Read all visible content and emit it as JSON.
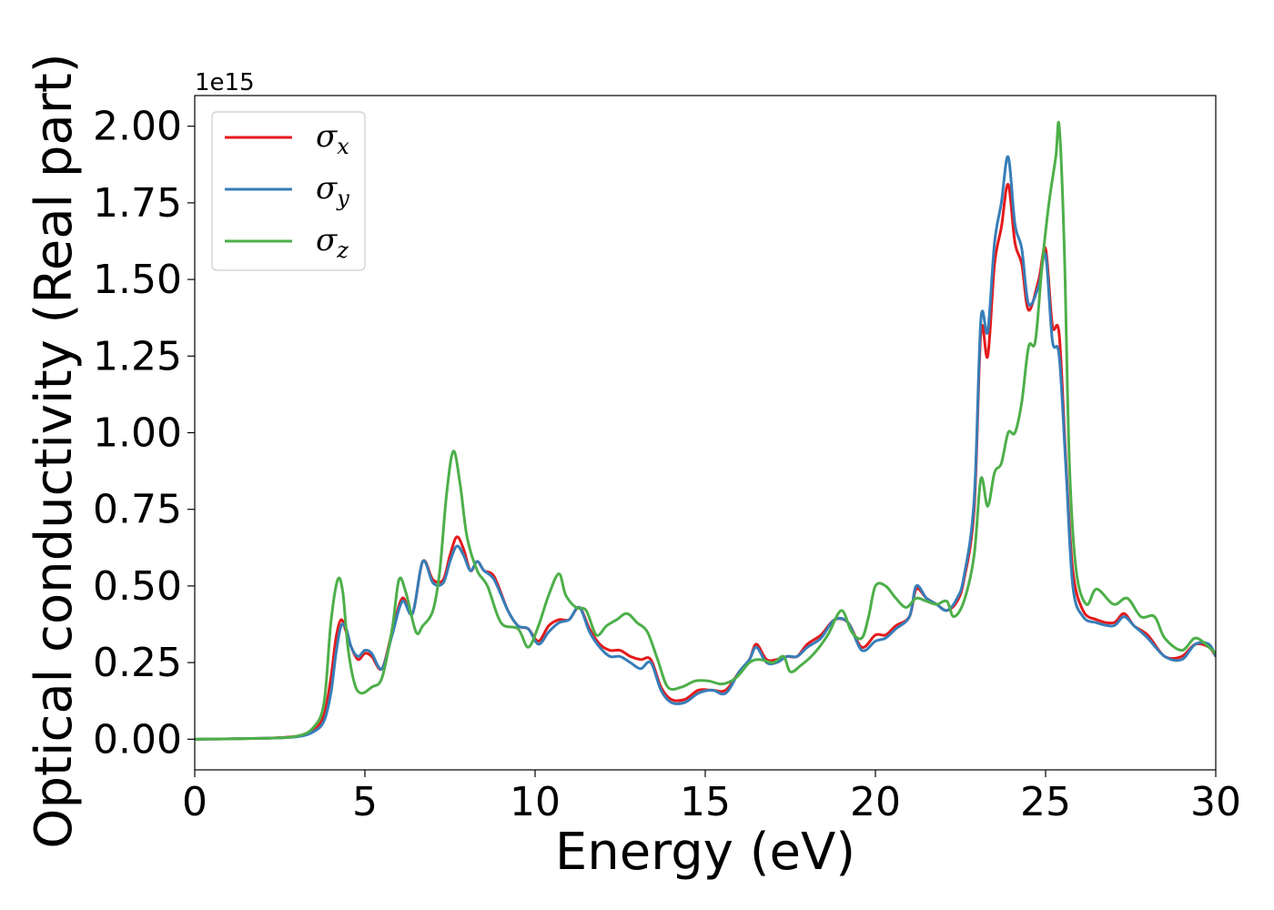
{
  "chart_data": {
    "type": "line",
    "xlabel": "Energy (eV)",
    "ylabel": "Optical conductivity (Real part)",
    "y_offset_label": "1e15",
    "xlim": [
      0,
      30
    ],
    "ylim": [
      -0.1,
      2.1
    ],
    "x_ticks": [
      0,
      5,
      10,
      15,
      20,
      25,
      30
    ],
    "x_tick_labels": [
      "0",
      "5",
      "10",
      "15",
      "20",
      "25",
      "30"
    ],
    "y_ticks": [
      0.0,
      0.25,
      0.5,
      0.75,
      1.0,
      1.25,
      1.5,
      1.75,
      2.0
    ],
    "y_tick_labels": [
      "0.00",
      "0.25",
      "0.50",
      "0.75",
      "1.00",
      "1.25",
      "1.50",
      "1.75",
      "2.00"
    ],
    "legend_position": "top-left",
    "grid": false,
    "series": [
      {
        "name": "σx",
        "symbol": "σ",
        "subscript": "x",
        "color": "#e41a1c",
        "points": [
          [
            0,
            0
          ],
          [
            2,
            0.003
          ],
          [
            3,
            0.01
          ],
          [
            3.5,
            0.03
          ],
          [
            3.8,
            0.08
          ],
          [
            4.0,
            0.2
          ],
          [
            4.15,
            0.33
          ],
          [
            4.3,
            0.39
          ],
          [
            4.45,
            0.35
          ],
          [
            4.6,
            0.3
          ],
          [
            4.8,
            0.26
          ],
          [
            5.0,
            0.28
          ],
          [
            5.2,
            0.27
          ],
          [
            5.5,
            0.23
          ],
          [
            5.8,
            0.35
          ],
          [
            6.1,
            0.46
          ],
          [
            6.4,
            0.41
          ],
          [
            6.7,
            0.58
          ],
          [
            7.0,
            0.52
          ],
          [
            7.3,
            0.52
          ],
          [
            7.5,
            0.6
          ],
          [
            7.7,
            0.66
          ],
          [
            7.9,
            0.62
          ],
          [
            8.1,
            0.55
          ],
          [
            8.3,
            0.58
          ],
          [
            8.5,
            0.55
          ],
          [
            8.8,
            0.53
          ],
          [
            9.2,
            0.42
          ],
          [
            9.5,
            0.37
          ],
          [
            9.8,
            0.36
          ],
          [
            10.1,
            0.32
          ],
          [
            10.4,
            0.37
          ],
          [
            10.7,
            0.39
          ],
          [
            11.0,
            0.39
          ],
          [
            11.3,
            0.43
          ],
          [
            11.6,
            0.36
          ],
          [
            11.9,
            0.31
          ],
          [
            12.2,
            0.29
          ],
          [
            12.5,
            0.29
          ],
          [
            12.8,
            0.27
          ],
          [
            13.1,
            0.26
          ],
          [
            13.4,
            0.26
          ],
          [
            13.7,
            0.17
          ],
          [
            14.0,
            0.13
          ],
          [
            14.4,
            0.13
          ],
          [
            14.8,
            0.16
          ],
          [
            15.2,
            0.16
          ],
          [
            15.6,
            0.16
          ],
          [
            16.0,
            0.22
          ],
          [
            16.3,
            0.26
          ],
          [
            16.5,
            0.31
          ],
          [
            16.8,
            0.26
          ],
          [
            17.1,
            0.26
          ],
          [
            17.4,
            0.27
          ],
          [
            17.7,
            0.27
          ],
          [
            18.0,
            0.31
          ],
          [
            18.4,
            0.34
          ],
          [
            18.8,
            0.39
          ],
          [
            19.2,
            0.38
          ],
          [
            19.6,
            0.3
          ],
          [
            20.0,
            0.34
          ],
          [
            20.3,
            0.34
          ],
          [
            20.6,
            0.37
          ],
          [
            21.0,
            0.4
          ],
          [
            21.2,
            0.49
          ],
          [
            21.5,
            0.46
          ],
          [
            21.8,
            0.44
          ],
          [
            22.1,
            0.42
          ],
          [
            22.4,
            0.45
          ],
          [
            22.6,
            0.52
          ],
          [
            22.9,
            0.75
          ],
          [
            23.1,
            1.33
          ],
          [
            23.3,
            1.25
          ],
          [
            23.5,
            1.55
          ],
          [
            23.7,
            1.67
          ],
          [
            23.9,
            1.81
          ],
          [
            24.1,
            1.62
          ],
          [
            24.3,
            1.55
          ],
          [
            24.5,
            1.4
          ],
          [
            24.8,
            1.5
          ],
          [
            25.0,
            1.6
          ],
          [
            25.2,
            1.35
          ],
          [
            25.4,
            1.32
          ],
          [
            25.6,
            0.9
          ],
          [
            25.8,
            0.55
          ],
          [
            26.1,
            0.42
          ],
          [
            26.5,
            0.39
          ],
          [
            27.0,
            0.38
          ],
          [
            27.3,
            0.41
          ],
          [
            27.6,
            0.37
          ],
          [
            28.0,
            0.34
          ],
          [
            28.5,
            0.27
          ],
          [
            29.0,
            0.27
          ],
          [
            29.4,
            0.31
          ],
          [
            29.8,
            0.3
          ],
          [
            30,
            0.27
          ]
        ]
      },
      {
        "name": "σy",
        "symbol": "σ",
        "subscript": "y",
        "color": "#377eb8",
        "points": [
          [
            0,
            0
          ],
          [
            2,
            0.003
          ],
          [
            3,
            0.008
          ],
          [
            3.5,
            0.025
          ],
          [
            3.8,
            0.06
          ],
          [
            4.0,
            0.15
          ],
          [
            4.15,
            0.28
          ],
          [
            4.3,
            0.37
          ],
          [
            4.45,
            0.36
          ],
          [
            4.6,
            0.3
          ],
          [
            4.8,
            0.27
          ],
          [
            5.0,
            0.29
          ],
          [
            5.2,
            0.28
          ],
          [
            5.5,
            0.23
          ],
          [
            5.8,
            0.34
          ],
          [
            6.1,
            0.45
          ],
          [
            6.4,
            0.41
          ],
          [
            6.7,
            0.58
          ],
          [
            7.0,
            0.51
          ],
          [
            7.3,
            0.51
          ],
          [
            7.5,
            0.58
          ],
          [
            7.7,
            0.63
          ],
          [
            7.9,
            0.6
          ],
          [
            8.1,
            0.55
          ],
          [
            8.3,
            0.58
          ],
          [
            8.5,
            0.55
          ],
          [
            8.8,
            0.52
          ],
          [
            9.2,
            0.42
          ],
          [
            9.5,
            0.37
          ],
          [
            9.8,
            0.36
          ],
          [
            10.1,
            0.31
          ],
          [
            10.4,
            0.35
          ],
          [
            10.7,
            0.38
          ],
          [
            11.0,
            0.39
          ],
          [
            11.3,
            0.43
          ],
          [
            11.6,
            0.35
          ],
          [
            11.9,
            0.3
          ],
          [
            12.2,
            0.27
          ],
          [
            12.5,
            0.27
          ],
          [
            12.8,
            0.25
          ],
          [
            13.1,
            0.23
          ],
          [
            13.4,
            0.25
          ],
          [
            13.7,
            0.16
          ],
          [
            14.0,
            0.12
          ],
          [
            14.4,
            0.12
          ],
          [
            14.8,
            0.15
          ],
          [
            15.2,
            0.16
          ],
          [
            15.6,
            0.15
          ],
          [
            16.0,
            0.22
          ],
          [
            16.3,
            0.26
          ],
          [
            16.5,
            0.3
          ],
          [
            16.8,
            0.25
          ],
          [
            17.1,
            0.25
          ],
          [
            17.4,
            0.27
          ],
          [
            17.7,
            0.27
          ],
          [
            18.0,
            0.3
          ],
          [
            18.4,
            0.33
          ],
          [
            18.8,
            0.39
          ],
          [
            19.2,
            0.38
          ],
          [
            19.6,
            0.29
          ],
          [
            20.0,
            0.32
          ],
          [
            20.3,
            0.33
          ],
          [
            20.6,
            0.36
          ],
          [
            21.0,
            0.4
          ],
          [
            21.2,
            0.5
          ],
          [
            21.5,
            0.46
          ],
          [
            21.8,
            0.44
          ],
          [
            22.1,
            0.42
          ],
          [
            22.4,
            0.46
          ],
          [
            22.6,
            0.53
          ],
          [
            22.9,
            0.78
          ],
          [
            23.1,
            1.37
          ],
          [
            23.3,
            1.33
          ],
          [
            23.5,
            1.62
          ],
          [
            23.7,
            1.75
          ],
          [
            23.9,
            1.9
          ],
          [
            24.1,
            1.68
          ],
          [
            24.3,
            1.6
          ],
          [
            24.5,
            1.42
          ],
          [
            24.8,
            1.48
          ],
          [
            25.0,
            1.58
          ],
          [
            25.2,
            1.3
          ],
          [
            25.4,
            1.25
          ],
          [
            25.6,
            0.88
          ],
          [
            25.8,
            0.5
          ],
          [
            26.1,
            0.4
          ],
          [
            26.5,
            0.38
          ],
          [
            27.0,
            0.37
          ],
          [
            27.3,
            0.4
          ],
          [
            27.6,
            0.37
          ],
          [
            28.0,
            0.33
          ],
          [
            28.5,
            0.27
          ],
          [
            29.0,
            0.26
          ],
          [
            29.4,
            0.31
          ],
          [
            29.8,
            0.31
          ],
          [
            30,
            0.27
          ]
        ]
      },
      {
        "name": "σz",
        "symbol": "σ",
        "subscript": "z",
        "color": "#4daf4a",
        "points": [
          [
            0,
            0
          ],
          [
            2,
            0.003
          ],
          [
            3,
            0.01
          ],
          [
            3.5,
            0.04
          ],
          [
            3.8,
            0.12
          ],
          [
            4.0,
            0.38
          ],
          [
            4.2,
            0.52
          ],
          [
            4.35,
            0.48
          ],
          [
            4.5,
            0.3
          ],
          [
            4.7,
            0.18
          ],
          [
            4.9,
            0.15
          ],
          [
            5.2,
            0.17
          ],
          [
            5.5,
            0.2
          ],
          [
            5.8,
            0.36
          ],
          [
            6.0,
            0.52
          ],
          [
            6.2,
            0.48
          ],
          [
            6.5,
            0.35
          ],
          [
            6.7,
            0.37
          ],
          [
            7.0,
            0.42
          ],
          [
            7.2,
            0.55
          ],
          [
            7.4,
            0.8
          ],
          [
            7.6,
            0.94
          ],
          [
            7.8,
            0.83
          ],
          [
            8.0,
            0.66
          ],
          [
            8.3,
            0.55
          ],
          [
            8.6,
            0.5
          ],
          [
            9.0,
            0.38
          ],
          [
            9.5,
            0.36
          ],
          [
            9.8,
            0.3
          ],
          [
            10.1,
            0.37
          ],
          [
            10.4,
            0.47
          ],
          [
            10.7,
            0.54
          ],
          [
            10.9,
            0.47
          ],
          [
            11.2,
            0.43
          ],
          [
            11.5,
            0.42
          ],
          [
            11.8,
            0.34
          ],
          [
            12.1,
            0.37
          ],
          [
            12.4,
            0.39
          ],
          [
            12.7,
            0.41
          ],
          [
            13.0,
            0.38
          ],
          [
            13.3,
            0.35
          ],
          [
            13.6,
            0.26
          ],
          [
            13.9,
            0.17
          ],
          [
            14.3,
            0.17
          ],
          [
            14.7,
            0.19
          ],
          [
            15.1,
            0.19
          ],
          [
            15.5,
            0.18
          ],
          [
            15.9,
            0.2
          ],
          [
            16.3,
            0.25
          ],
          [
            16.6,
            0.26
          ],
          [
            17.0,
            0.25
          ],
          [
            17.3,
            0.27
          ],
          [
            17.5,
            0.22
          ],
          [
            17.8,
            0.24
          ],
          [
            18.2,
            0.28
          ],
          [
            18.6,
            0.34
          ],
          [
            19.0,
            0.42
          ],
          [
            19.3,
            0.35
          ],
          [
            19.6,
            0.33
          ],
          [
            19.8,
            0.4
          ],
          [
            20.0,
            0.5
          ],
          [
            20.3,
            0.5
          ],
          [
            20.6,
            0.46
          ],
          [
            20.9,
            0.43
          ],
          [
            21.2,
            0.46
          ],
          [
            21.5,
            0.45
          ],
          [
            21.8,
            0.44
          ],
          [
            22.1,
            0.45
          ],
          [
            22.3,
            0.4
          ],
          [
            22.6,
            0.45
          ],
          [
            22.9,
            0.6
          ],
          [
            23.1,
            0.85
          ],
          [
            23.3,
            0.76
          ],
          [
            23.5,
            0.87
          ],
          [
            23.7,
            0.9
          ],
          [
            23.9,
            1.0
          ],
          [
            24.1,
            1.0
          ],
          [
            24.3,
            1.1
          ],
          [
            24.5,
            1.28
          ],
          [
            24.7,
            1.3
          ],
          [
            24.9,
            1.55
          ],
          [
            25.1,
            1.75
          ],
          [
            25.3,
            1.9
          ],
          [
            25.4,
            2.0
          ],
          [
            25.55,
            1.6
          ],
          [
            25.7,
            0.9
          ],
          [
            25.9,
            0.55
          ],
          [
            26.2,
            0.44
          ],
          [
            26.5,
            0.49
          ],
          [
            27.0,
            0.44
          ],
          [
            27.4,
            0.46
          ],
          [
            27.8,
            0.4
          ],
          [
            28.2,
            0.4
          ],
          [
            28.5,
            0.33
          ],
          [
            29.0,
            0.29
          ],
          [
            29.4,
            0.33
          ],
          [
            29.8,
            0.3
          ],
          [
            30,
            0.28
          ]
        ]
      }
    ]
  }
}
